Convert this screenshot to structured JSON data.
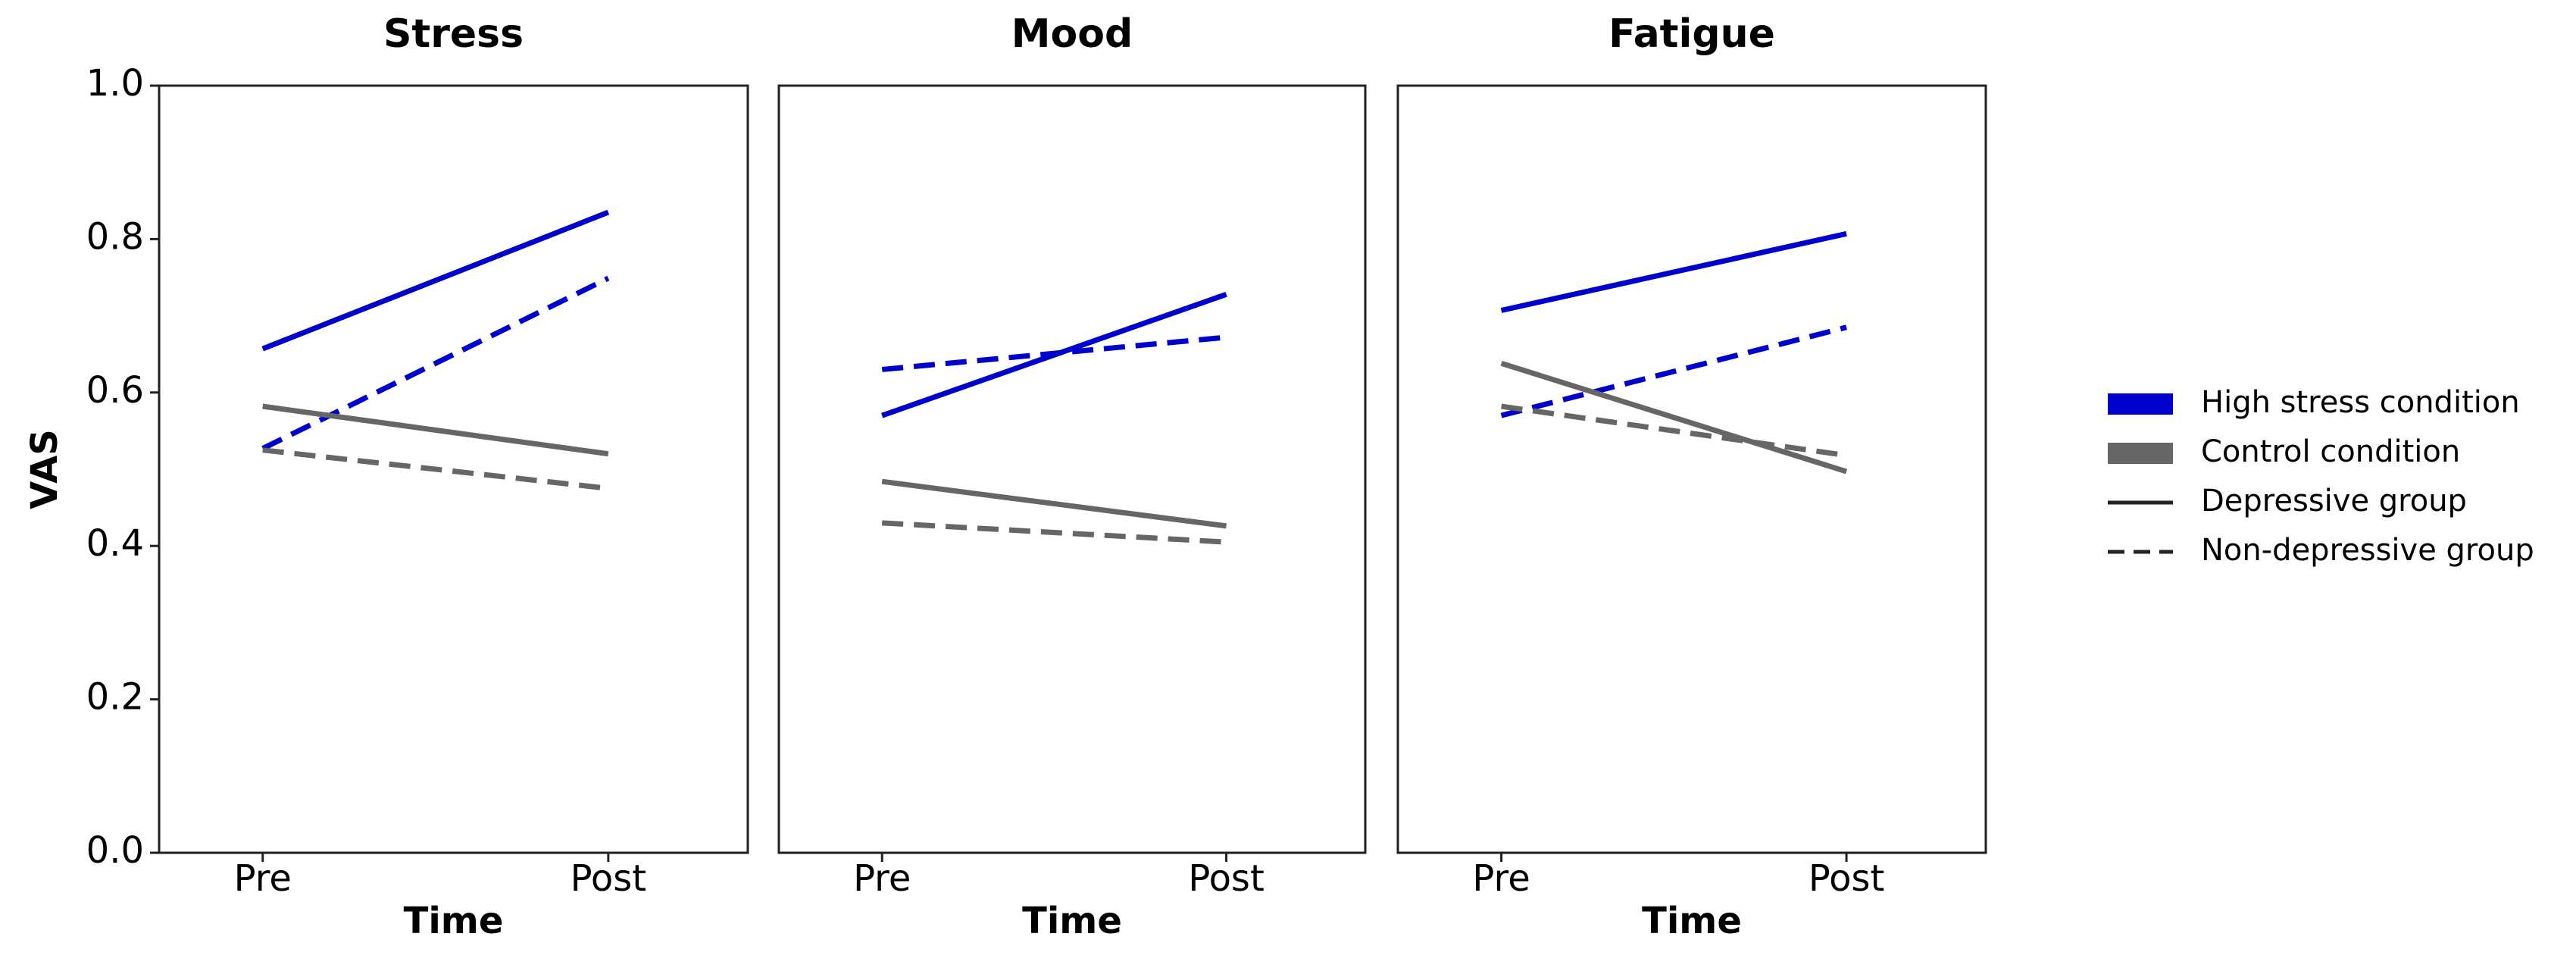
{
  "chart_data": [
    {
      "type": "line",
      "title": "Stress",
      "ylabel": "VAS",
      "xlabel": "Time",
      "categories": [
        "Pre",
        "Post"
      ],
      "ylim": [
        0,
        1
      ],
      "yticks": [
        {
          "value": 0,
          "label": "0.0"
        },
        {
          "value": 0.2,
          "label": "0.2"
        },
        {
          "value": 0.4,
          "label": "0.4"
        },
        {
          "value": 0.6,
          "label": "0.6"
        },
        {
          "value": 0.8,
          "label": "0.8"
        },
        {
          "value": 1,
          "label": "1.0"
        }
      ],
      "series": [
        {
          "color": "#0000cc",
          "style": "solid",
          "values": [
            0.657,
            0.835
          ]
        },
        {
          "color": "#0000cc",
          "style": "dashed",
          "values": [
            0.527,
            0.749
          ]
        },
        {
          "color": "#666666",
          "style": "solid",
          "values": [
            0.582,
            0.52
          ]
        },
        {
          "color": "#666666",
          "style": "dashed",
          "values": [
            0.525,
            0.475
          ]
        }
      ]
    },
    {
      "type": "line",
      "title": "Mood",
      "xlabel": "Time",
      "categories": [
        "Pre",
        "Post"
      ],
      "ylim": [
        0,
        1
      ],
      "series": [
        {
          "color": "#0000cc",
          "style": "solid",
          "values": [
            0.57,
            0.728
          ]
        },
        {
          "color": "#0000cc",
          "style": "dashed",
          "values": [
            0.63,
            0.672
          ]
        },
        {
          "color": "#666666",
          "style": "solid",
          "values": [
            0.484,
            0.426
          ]
        },
        {
          "color": "#666666",
          "style": "dashed",
          "values": [
            0.43,
            0.405
          ]
        }
      ]
    },
    {
      "type": "line",
      "title": "Fatigue",
      "xlabel": "Time",
      "categories": [
        "Pre",
        "Post"
      ],
      "ylim": [
        0,
        1
      ],
      "series": [
        {
          "color": "#0000cc",
          "style": "solid",
          "values": [
            0.707,
            0.807
          ]
        },
        {
          "color": "#0000cc",
          "style": "dashed",
          "values": [
            0.57,
            0.685
          ]
        },
        {
          "color": "#666666",
          "style": "solid",
          "values": [
            0.638,
            0.497
          ]
        },
        {
          "color": "#666666",
          "style": "dashed",
          "values": [
            0.582,
            0.518
          ]
        }
      ]
    }
  ],
  "legend": {
    "entries": [
      {
        "label": "High stress condition",
        "kind": "patch",
        "color": "#0000cc"
      },
      {
        "label": "Control condition",
        "kind": "patch",
        "color": "#666666"
      },
      {
        "label": "Depressive group",
        "kind": "line",
        "style": "solid",
        "color": "#222222"
      },
      {
        "label": "Non-depressive group",
        "kind": "line",
        "style": "dashed",
        "color": "#222222"
      }
    ]
  }
}
